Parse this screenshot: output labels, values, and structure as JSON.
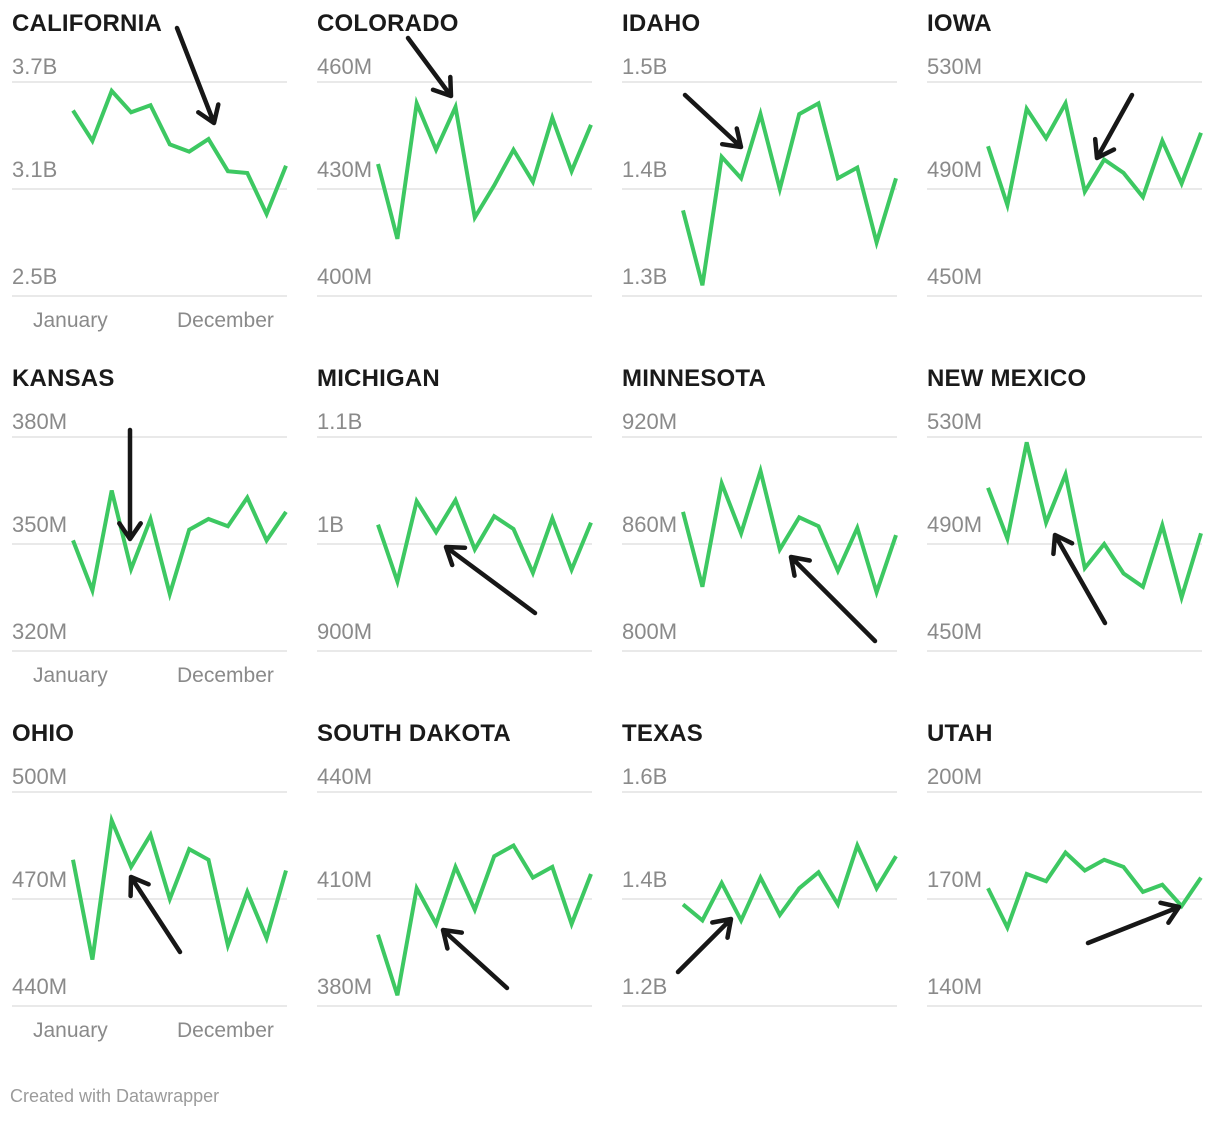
{
  "style": {
    "line_color": "#3dc862",
    "arrow_color": "#171717",
    "grid_color": "#e2e2e2",
    "tick_color": "#8a8a8a",
    "title_color": "#1a1a1a"
  },
  "footer": {
    "credit": "Created with Datawrapper"
  },
  "chart_data": {
    "type": "line",
    "layout": "small multiples, 4 columns x 3 rows, grid off except 3 horizontal gridlines per tile, no legend",
    "x": {
      "start_label": "January",
      "end_label": "December",
      "points_per_series": 12
    },
    "charts": [
      {
        "title": "CALIFORNIA",
        "y_ticks": [
          "3.7B",
          "3.1B",
          "2.5B"
        ],
        "y_max": 3.7,
        "y_min": 2.5,
        "values": [
          3.54,
          3.37,
          3.65,
          3.53,
          3.57,
          3.35,
          3.31,
          3.38,
          3.2,
          3.19,
          2.96,
          3.23
        ],
        "show_x_labels": true,
        "arrow": {
          "from": [
            177,
            28
          ],
          "to": [
            214,
            123
          ]
        }
      },
      {
        "title": "COLORADO",
        "y_ticks": [
          "460M",
          "430M",
          "400M"
        ],
        "y_max": 460,
        "y_min": 400,
        "values": [
          437,
          416,
          454,
          441,
          453,
          422,
          431,
          441,
          432,
          450,
          435,
          448
        ],
        "show_x_labels": false,
        "arrow": {
          "from": [
            103,
            38
          ],
          "to": [
            146,
            96
          ]
        }
      },
      {
        "title": "IDAHO",
        "y_ticks": [
          "1.5B",
          "1.4B",
          "1.3B"
        ],
        "y_max": 1.5,
        "y_min": 1.3,
        "values": [
          1.38,
          1.31,
          1.43,
          1.41,
          1.47,
          1.4,
          1.47,
          1.48,
          1.41,
          1.42,
          1.35,
          1.41
        ],
        "show_x_labels": false,
        "arrow": {
          "from": [
            75,
            95
          ],
          "to": [
            131,
            147
          ]
        }
      },
      {
        "title": "IOWA",
        "y_ticks": [
          "530M",
          "490M",
          "450M"
        ],
        "y_max": 530,
        "y_min": 450,
        "values": [
          506,
          484,
          520,
          509,
          522,
          489,
          501,
          496,
          487,
          508,
          492,
          511
        ],
        "show_x_labels": false,
        "arrow": {
          "from": [
            217,
            95
          ],
          "to": [
            182,
            158
          ]
        }
      },
      {
        "title": "KANSAS",
        "y_ticks": [
          "380M",
          "350M",
          "320M"
        ],
        "y_max": 380,
        "y_min": 320,
        "values": [
          351,
          337,
          365,
          343,
          357,
          336,
          354,
          357,
          355,
          363,
          351,
          359
        ],
        "show_x_labels": true,
        "arrow": {
          "from": [
            130,
            75
          ],
          "to": [
            130,
            184
          ]
        }
      },
      {
        "title": "MICHIGAN",
        "y_ticks": [
          "1.1B",
          "1B",
          "900M"
        ],
        "y_max": 1100,
        "y_min": 900,
        "values": [
          1018,
          965,
          1040,
          1011,
          1041,
          995,
          1026,
          1014,
          973,
          1024,
          976,
          1020
        ],
        "show_x_labels": false,
        "arrow": {
          "from": [
            230,
            258
          ],
          "to": [
            141,
            192
          ]
        }
      },
      {
        "title": "MINNESOTA",
        "y_ticks": [
          "920M",
          "860M",
          "800M"
        ],
        "y_max": 920,
        "y_min": 800,
        "values": [
          878,
          836,
          894,
          866,
          901,
          857,
          875,
          870,
          845,
          869,
          833,
          865
        ],
        "show_x_labels": false,
        "arrow": {
          "from": [
            265,
            286
          ],
          "to": [
            181,
            202
          ]
        }
      },
      {
        "title": "NEW MEXICO",
        "y_ticks": [
          "530M",
          "490M",
          "450M"
        ],
        "y_max": 530,
        "y_min": 450,
        "values": [
          511,
          492,
          528,
          498,
          516,
          481,
          490,
          479,
          474,
          497,
          470,
          494
        ],
        "show_x_labels": false,
        "arrow": {
          "from": [
            190,
            268
          ],
          "to": [
            140,
            180
          ]
        }
      },
      {
        "title": "OHIO",
        "y_ticks": [
          "500M",
          "470M",
          "440M"
        ],
        "y_max": 500,
        "y_min": 440,
        "values": [
          481,
          453,
          492,
          479,
          488,
          470,
          484,
          481,
          457,
          472,
          459,
          478
        ],
        "show_x_labels": true,
        "arrow": {
          "from": [
            180,
            242
          ],
          "to": [
            131,
            167
          ]
        }
      },
      {
        "title": "SOUTH DAKOTA",
        "y_ticks": [
          "440M",
          "410M",
          "380M"
        ],
        "y_max": 440,
        "y_min": 380,
        "values": [
          400,
          383,
          413,
          403,
          419,
          407,
          422,
          425,
          416,
          419,
          403,
          417
        ],
        "show_x_labels": false,
        "arrow": {
          "from": [
            202,
            278
          ],
          "to": [
            138,
            220
          ]
        }
      },
      {
        "title": "TEXAS",
        "y_ticks": [
          "1.6B",
          "1.4B",
          "1.2B"
        ],
        "y_max": 1.6,
        "y_min": 1.2,
        "values": [
          1.39,
          1.36,
          1.43,
          1.36,
          1.44,
          1.37,
          1.42,
          1.45,
          1.39,
          1.5,
          1.42,
          1.48
        ],
        "show_x_labels": false,
        "arrow": {
          "from": [
            68,
            262
          ],
          "to": [
            121,
            209
          ]
        }
      },
      {
        "title": "UTAH",
        "y_ticks": [
          "200M",
          "170M",
          "140M"
        ],
        "y_max": 200,
        "y_min": 140,
        "values": [
          173,
          162,
          177,
          175,
          183,
          178,
          181,
          179,
          172,
          174,
          168,
          176
        ],
        "show_x_labels": false,
        "arrow": {
          "from": [
            173,
            233
          ],
          "to": [
            264,
            197
          ]
        }
      }
    ]
  }
}
